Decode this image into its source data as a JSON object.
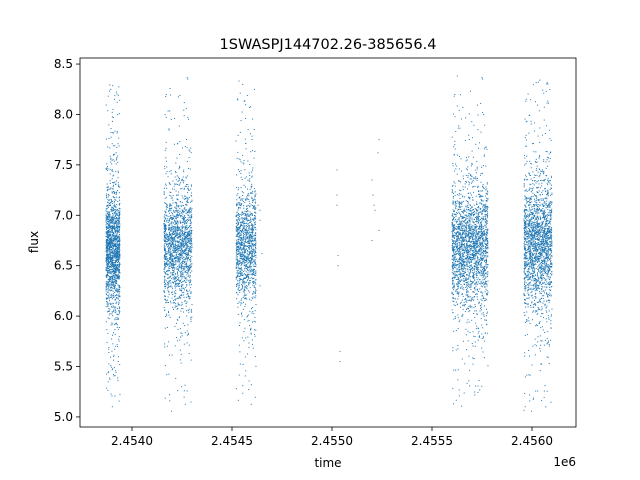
{
  "chart_data": {
    "type": "scatter",
    "title": "1SWASPJ144702.26-385656.4",
    "xlabel": "time",
    "ylabel": "flux",
    "x_offset_label": "1e6",
    "xlim": [
      2453740,
      2456220
    ],
    "ylim": [
      4.9,
      8.56
    ],
    "x_ticks": [
      2454000,
      2454500,
      2455000,
      2455500,
      2456000
    ],
    "x_tick_labels": [
      "2.4540",
      "2.4545",
      "2.4550",
      "2.4555",
      "2.4560"
    ],
    "y_ticks": [
      5.0,
      5.5,
      6.0,
      6.5,
      7.0,
      7.5,
      8.0,
      8.5
    ],
    "y_tick_labels": [
      "5.0",
      "5.5",
      "6.0",
      "6.5",
      "7.0",
      "7.5",
      "8.0",
      "8.5"
    ],
    "grid": false,
    "marker_color": "#1f77b4",
    "clusters": [
      {
        "x_range": [
          2453870,
          2453940
        ],
        "center": 6.65,
        "spread": 0.28,
        "min": 5.05,
        "max": 8.4,
        "count": 1600
      },
      {
        "x_range": [
          2454160,
          2454300
        ],
        "center": 6.7,
        "spread": 0.27,
        "min": 5.05,
        "max": 8.4,
        "count": 1700
      },
      {
        "x_range": [
          2454520,
          2454620
        ],
        "center": 6.7,
        "spread": 0.27,
        "min": 5.1,
        "max": 8.35,
        "count": 1200
      },
      {
        "x_range": [
          2455600,
          2455780
        ],
        "center": 6.7,
        "spread": 0.28,
        "min": 5.1,
        "max": 8.4,
        "count": 2200
      },
      {
        "x_range": [
          2455960,
          2456100
        ],
        "center": 6.72,
        "spread": 0.3,
        "min": 5.05,
        "max": 8.35,
        "count": 2000
      }
    ],
    "sparse_points": [
      [
        2454640,
        7.05
      ],
      [
        2454640,
        6.95
      ],
      [
        2454650,
        6.62
      ],
      [
        2454640,
        6.3
      ],
      [
        2454630,
        7.1
      ],
      [
        2455025,
        7.45
      ],
      [
        2455025,
        7.2
      ],
      [
        2455025,
        7.1
      ],
      [
        2455030,
        6.6
      ],
      [
        2455030,
        6.5
      ],
      [
        2455040,
        5.65
      ],
      [
        2455040,
        5.55
      ],
      [
        2455200,
        7.35
      ],
      [
        2455205,
        7.2
      ],
      [
        2455210,
        7.1
      ],
      [
        2455215,
        7.05
      ],
      [
        2455200,
        6.75
      ],
      [
        2455230,
        7.62
      ],
      [
        2455235,
        7.75
      ],
      [
        2455235,
        6.85
      ]
    ]
  }
}
